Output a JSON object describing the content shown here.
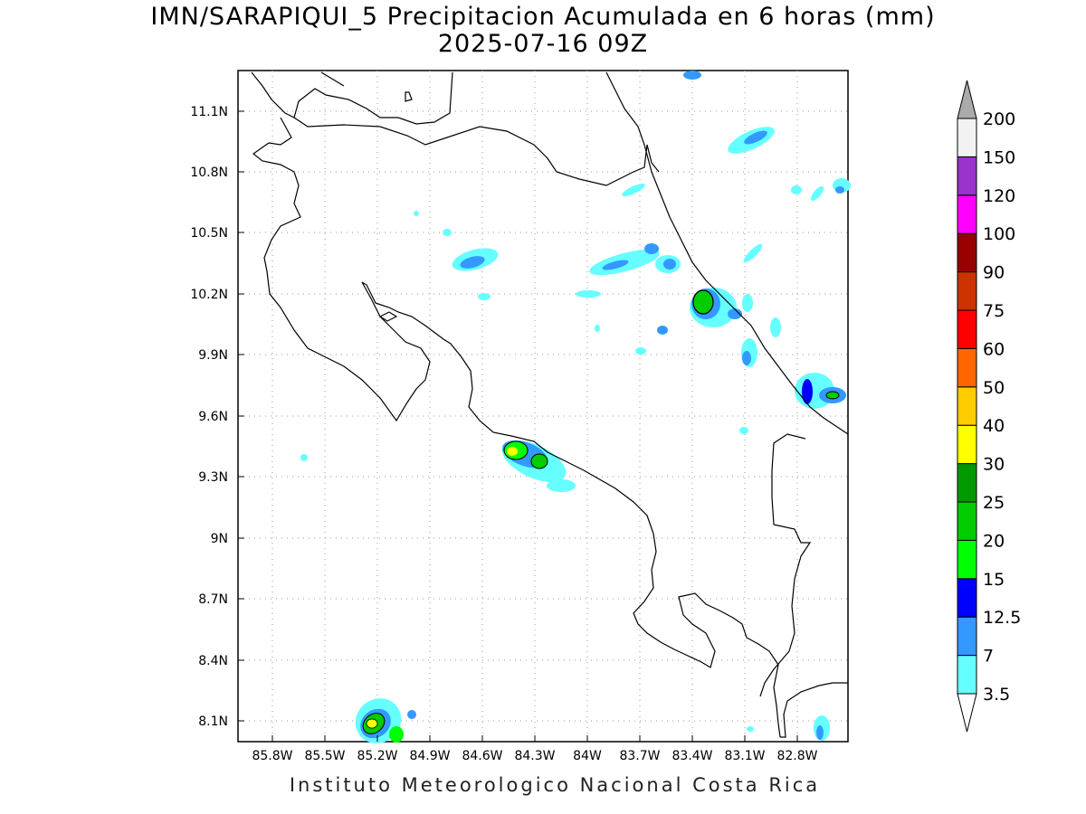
{
  "title": "IMN/SARAPIQUI_5 Precipitacion Acumulada en 6 horas (mm)",
  "subtitle": "2025-07-16 09Z",
  "footer": "Instituto Meteorologico Nacional Costa Rica",
  "map": {
    "lon_range": [
      -86.0,
      -83.1
    ],
    "lat_range": [
      8.0,
      11.3
    ],
    "lon_ticks": [
      "85.8W",
      "85.5W",
      "85.2W",
      "84.9W",
      "84.6W",
      "84.3W",
      "84W",
      "83.7W",
      "83.4W",
      "83.1W",
      "82.8W"
    ],
    "lat_ticks": [
      "11.1N",
      "10.8N",
      "10.5N",
      "10.2N",
      "9.9N",
      "9.6N",
      "9.3N",
      "9N",
      "8.7N",
      "8.4N",
      "8.1N"
    ],
    "grid": "dotted"
  },
  "colorbar": {
    "labels": [
      "3.5",
      "7",
      "12.5",
      "15",
      "20",
      "25",
      "30",
      "40",
      "50",
      "60",
      "75",
      "90",
      "100",
      "120",
      "150",
      "200"
    ],
    "colors": [
      "#66ffff",
      "#3399ff",
      "#0000ff",
      "#00ff00",
      "#00cc00",
      "#009900",
      "#ffff00",
      "#ffcc00",
      "#ff6600",
      "#ff0000",
      "#cc3300",
      "#990000",
      "#ff00ff",
      "#9933cc",
      "#f2f2f2",
      "#aaaaaa"
    ]
  },
  "colors": {
    "coastline": "#000000",
    "background": "#ffffff"
  }
}
